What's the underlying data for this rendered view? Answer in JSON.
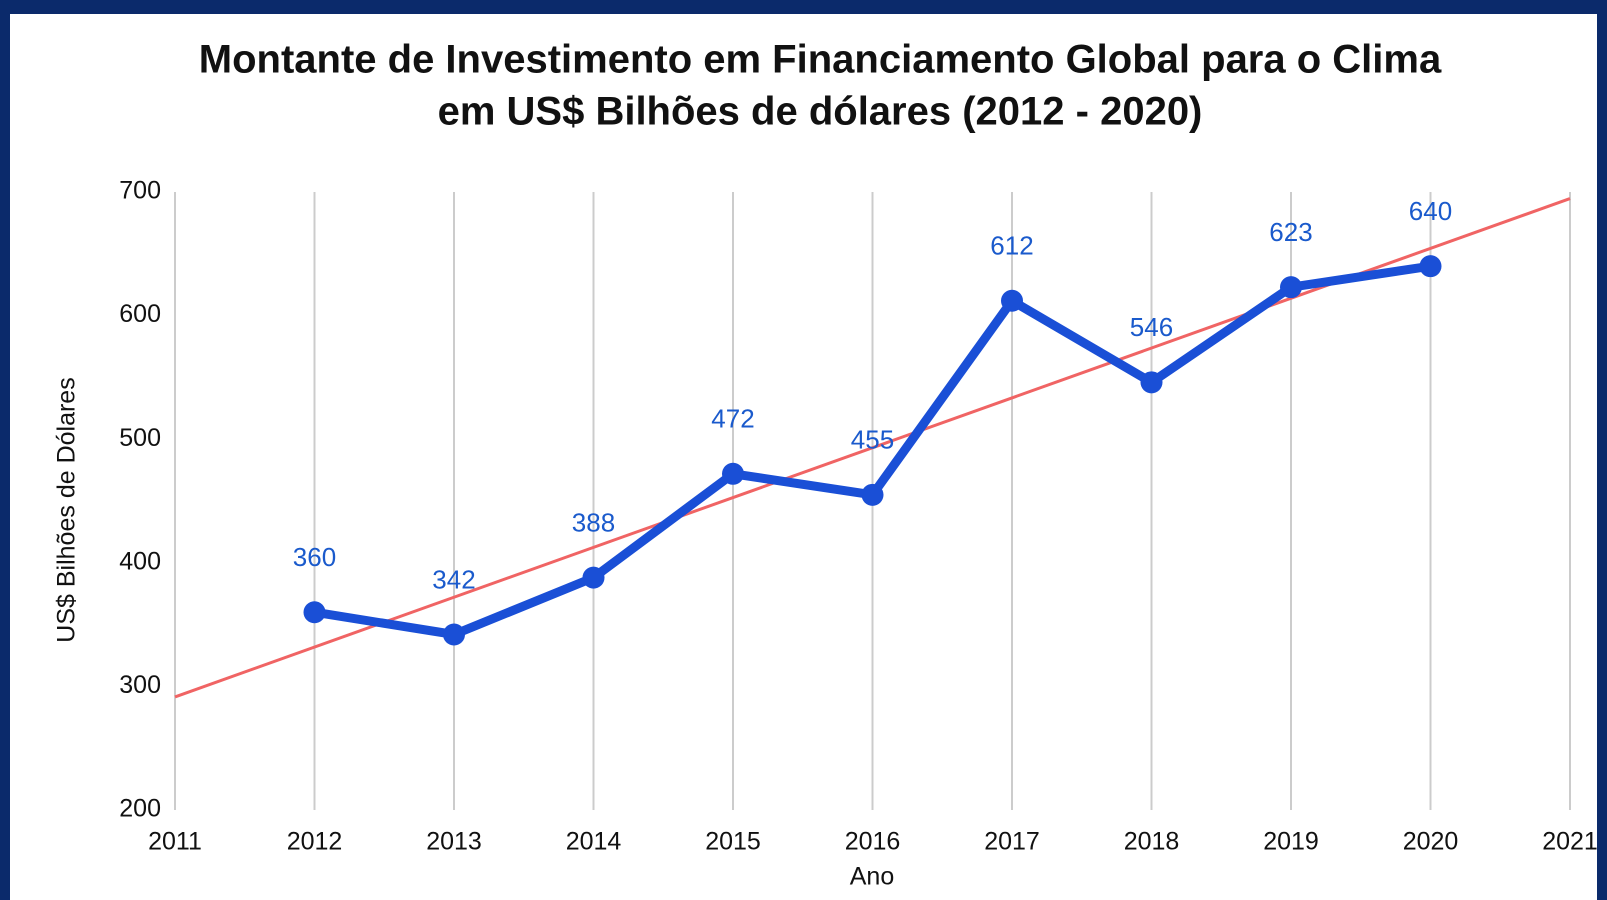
{
  "chart_data": {
    "type": "line",
    "title": "Montante de Investimento em Financiamento Global para o Clima",
    "subtitle": "em US$ Bilhões de dólares (2012 - 2020)",
    "x_label": "Ano",
    "y_label": "US$ Bilhões de Dólares",
    "x": [
      2012,
      2013,
      2014,
      2015,
      2016,
      2017,
      2018,
      2019,
      2020
    ],
    "series": [
      {
        "color": "#1a4fd6",
        "values": [
          360,
          342,
          388,
          472,
          455,
          612,
          546,
          623,
          640
        ]
      }
    ],
    "trendline": {
      "color": "#f06464",
      "x": [
        2011,
        2021
      ],
      "values": [
        291.5,
        694.7
      ]
    },
    "xlim": [
      2011,
      2021
    ],
    "xticks": [
      2011,
      2012,
      2013,
      2014,
      2015,
      2016,
      2017,
      2018,
      2019,
      2020,
      2021
    ],
    "ylim": [
      200,
      700
    ],
    "yticks": [
      200,
      300,
      400,
      500,
      600,
      700
    ],
    "grid": true,
    "data_label_color": "#1a5acc"
  }
}
